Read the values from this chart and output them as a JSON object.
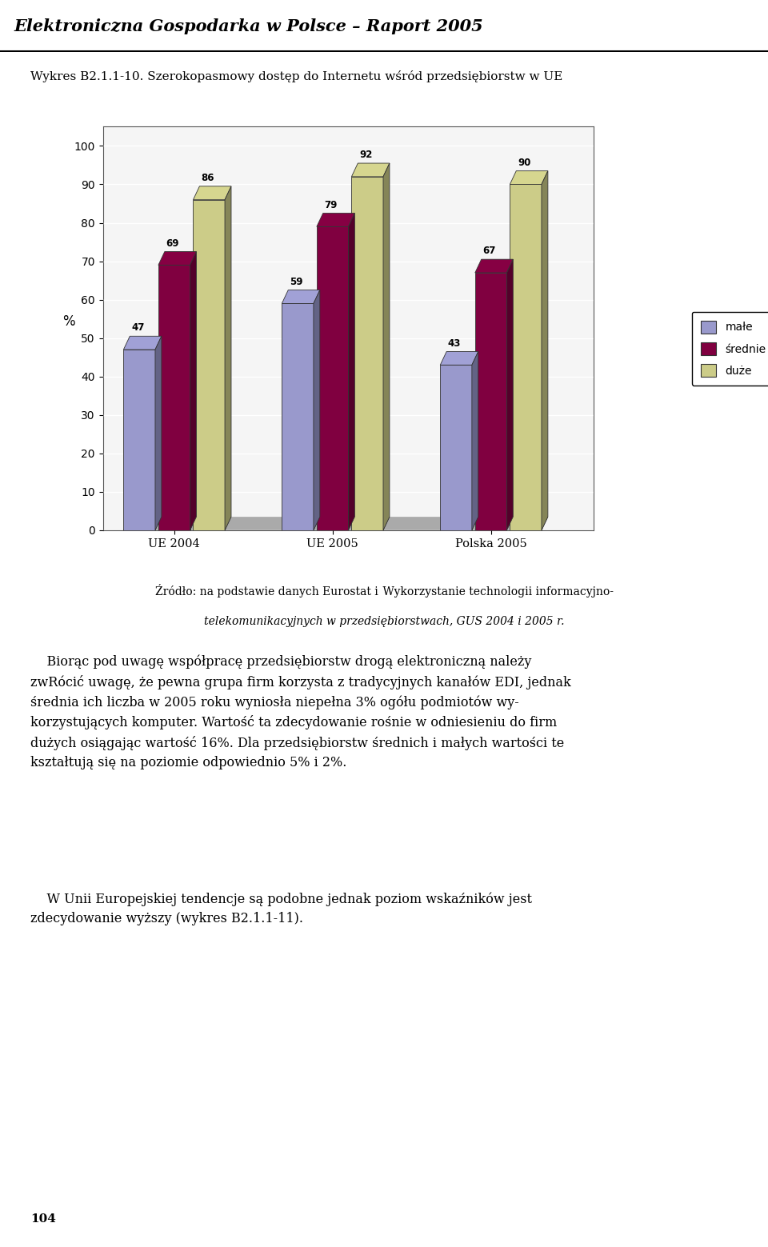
{
  "header_title": "Elektroniczna Gospodarka w Polsce – Raport 2005",
  "chart_subtitle": "Wykres B2.1.1-10. Szerokopasmowy dostęp do Internetu wśród przedsiębiorstw w UE",
  "categories": [
    "UE 2004",
    "UE 2005",
    "Polska 2005"
  ],
  "series": {
    "małe": [
      47,
      59,
      43
    ],
    "średnie": [
      69,
      79,
      67
    ],
    "duże": [
      86,
      92,
      90
    ]
  },
  "colors": {
    "małe": "#9999CC",
    "średnie": "#800040",
    "duże": "#CCCC88"
  },
  "legend_colors": {
    "małe": "#9999CC",
    "średnie": "#993355",
    "duże": "#FFFFCC"
  },
  "ylabel": "%",
  "ylim": [
    0,
    100
  ],
  "yticks": [
    0,
    10,
    20,
    30,
    40,
    50,
    60,
    70,
    80,
    90,
    100
  ],
  "source_normal1": "Źródło: na podstawie danych Eurostat i ",
  "source_italic1": "Wykorzystanie technologii informacyjno-",
  "source_italic2": "telekomunikacyjnych w przedsiębiorstwach",
  "source_normal2": ", GUS 2004 i 2005 r.",
  "body1_indent": "    Biorąc pod uwagę współpracę przedsiębiorstw drogą elektroniczną należy zwRócić uwagę, że pewna grupa firm korzysta z tradycyjnych kanałów EDI, jednak średnia ich liczba w 2005 roku wyniosła niepełna 3% ogółu podmiotów wy-korzystujących komputer. Wartość ta zdecydowanie rośnie w odniesieniu do firm dużych osiągając wartość 16%. Dla przedsiębiorstw średnich i małych wartości te kształtują się na poziomie odpowiednio 5% i 2%.",
  "body2_indent": "    W Unii Europejskiej tendencje są podobne jednak poziom wskaźników jest zdecydowanie wyższy (wykres B2.1.1-11).",
  "page_number": "104",
  "background_color": "#FFFFFF",
  "chart_bg_color": "#E8E8E8",
  "plot_bg_color": "#F5F5F5",
  "grid_color": "#FFFFFF",
  "floor_color": "#AAAAAA"
}
